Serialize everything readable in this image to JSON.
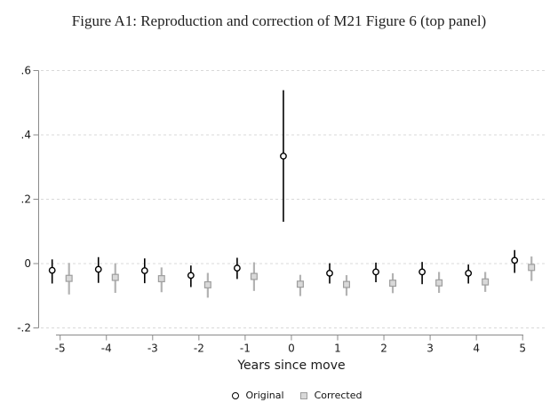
{
  "colors": {
    "axis": "#8a8a8a",
    "grid": "#d9d9d9",
    "tick_text": "#1a1a1a",
    "original": "#000000",
    "corrected_border": "#9e9e9e",
    "corrected_fill": "#d9d9d9",
    "corrected_line": "#b3b3b3",
    "background": "#ffffff"
  },
  "chart_data": {
    "type": "scatter",
    "subtype": "point-estimates-with-confidence-intervals",
    "title": "Figure A1: Reproduction and correction of M21 Figure 6 (top panel)",
    "xlabel": "Years since move",
    "ylabel": "",
    "xlim": [
      -5.6,
      5.6
    ],
    "ylim": [
      -0.25,
      0.62
    ],
    "grid": "horizontal-dashed-at-y-ticks",
    "legend_position": "bottom-center",
    "x_ticks": [
      {
        "value": -5,
        "label": "-5"
      },
      {
        "value": -4,
        "label": "-4"
      },
      {
        "value": -3,
        "label": "-3"
      },
      {
        "value": -2,
        "label": "-2"
      },
      {
        "value": -1,
        "label": "-1"
      },
      {
        "value": 0,
        "label": "0"
      },
      {
        "value": 1,
        "label": "1"
      },
      {
        "value": 2,
        "label": "2"
      },
      {
        "value": 3,
        "label": "3"
      },
      {
        "value": 4,
        "label": "4"
      },
      {
        "value": 5,
        "label": "5"
      }
    ],
    "y_ticks": [
      {
        "value": 0.6,
        "label": ".6"
      },
      {
        "value": 0.4,
        "label": ".4"
      },
      {
        "value": 0.2,
        "label": ".2"
      },
      {
        "value": 0.0,
        "label": "0"
      },
      {
        "value": -0.2,
        "label": "-.2"
      }
    ],
    "series": [
      {
        "name": "Original",
        "marker": "circle",
        "marker_color": "#000000",
        "marker_fill": "#ffffff",
        "line_color": "#000000",
        "x_offset_years": -0.17,
        "points": [
          {
            "x": -5,
            "y": -0.021,
            "lo": -0.062,
            "hi": 0.013
          },
          {
            "x": -4,
            "y": -0.018,
            "lo": -0.06,
            "hi": 0.02
          },
          {
            "x": -3,
            "y": -0.022,
            "lo": -0.061,
            "hi": 0.016
          },
          {
            "x": -2,
            "y": -0.037,
            "lo": -0.073,
            "hi": -0.006
          },
          {
            "x": -1,
            "y": -0.014,
            "lo": -0.048,
            "hi": 0.018
          },
          {
            "x": 0,
            "y": 0.334,
            "lo": 0.13,
            "hi": 0.539
          },
          {
            "x": 1,
            "y": -0.03,
            "lo": -0.062,
            "hi": 0.001
          },
          {
            "x": 2,
            "y": -0.026,
            "lo": -0.058,
            "hi": 0.003
          },
          {
            "x": 3,
            "y": -0.026,
            "lo": -0.064,
            "hi": 0.005
          },
          {
            "x": 4,
            "y": -0.03,
            "lo": -0.062,
            "hi": -0.003
          },
          {
            "x": 5,
            "y": 0.01,
            "lo": -0.029,
            "hi": 0.042
          }
        ]
      },
      {
        "name": "Corrected",
        "marker": "square",
        "marker_color": "#9e9e9e",
        "marker_fill": "#d9d9d9",
        "line_color": "#b3b3b3",
        "x_offset_years": 0.19,
        "points": [
          {
            "x": -5,
            "y": -0.046,
            "lo": -0.096,
            "hi": 0.002
          },
          {
            "x": -4,
            "y": -0.043,
            "lo": -0.091,
            "hi": 0.001
          },
          {
            "x": -3,
            "y": -0.047,
            "lo": -0.089,
            "hi": -0.012
          },
          {
            "x": -2,
            "y": -0.066,
            "lo": -0.106,
            "hi": -0.029
          },
          {
            "x": -1,
            "y": -0.04,
            "lo": -0.085,
            "hi": 0.004
          },
          {
            "x": 0,
            "y": -0.064,
            "lo": -0.101,
            "hi": -0.035
          },
          {
            "x": 1,
            "y": -0.065,
            "lo": -0.1,
            "hi": -0.036
          },
          {
            "x": 2,
            "y": -0.061,
            "lo": -0.092,
            "hi": -0.03
          },
          {
            "x": 3,
            "y": -0.06,
            "lo": -0.091,
            "hi": -0.026
          },
          {
            "x": 4,
            "y": -0.057,
            "lo": -0.088,
            "hi": -0.026
          },
          {
            "x": 5,
            "y": -0.012,
            "lo": -0.054,
            "hi": 0.022
          }
        ]
      }
    ]
  }
}
